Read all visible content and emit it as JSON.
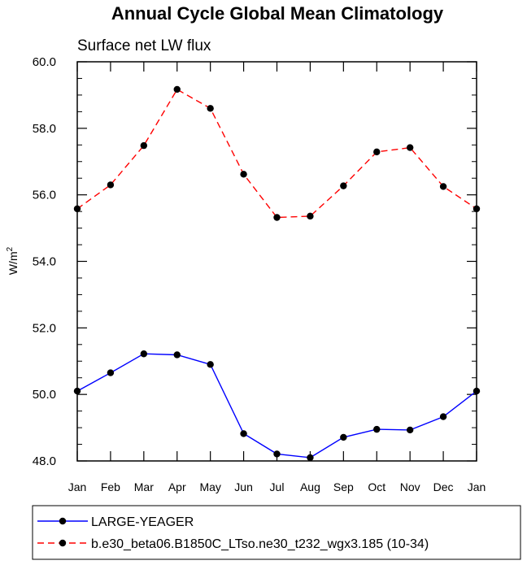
{
  "chart_data": {
    "type": "line",
    "title": "Annual Cycle Global Mean Climatology",
    "subtitle": "Surface net LW flux",
    "ylabel": "W/m",
    "ylabel_superscript": "2",
    "xlabel": "",
    "categories": [
      "Jan",
      "Feb",
      "Mar",
      "Apr",
      "May",
      "Jun",
      "Jul",
      "Aug",
      "Sep",
      "Oct",
      "Nov",
      "Dec",
      "Jan"
    ],
    "ylim": [
      48.0,
      60.0
    ],
    "yticks": [
      "48.0",
      "50.0",
      "52.0",
      "54.0",
      "56.0",
      "58.0",
      "60.0"
    ],
    "grid": false,
    "legend_position": "bottom",
    "series": [
      {
        "name": "LARGE-YEAGER",
        "color": "#0000ff",
        "style": "solid",
        "marker": "filled-circle",
        "values": [
          50.1,
          50.65,
          51.22,
          51.19,
          50.9,
          48.82,
          48.21,
          48.1,
          48.71,
          48.95,
          48.93,
          49.33,
          50.1
        ]
      },
      {
        "name": "b.e30_beta06.B1850C_LTso.ne30_t232_wgx3.185 (10-34)",
        "color": "#ff0000",
        "style": "dashed",
        "marker": "filled-circle",
        "values": [
          55.58,
          56.3,
          57.48,
          59.17,
          58.6,
          56.62,
          55.32,
          55.36,
          56.27,
          57.29,
          57.42,
          56.25,
          55.58
        ]
      }
    ]
  }
}
